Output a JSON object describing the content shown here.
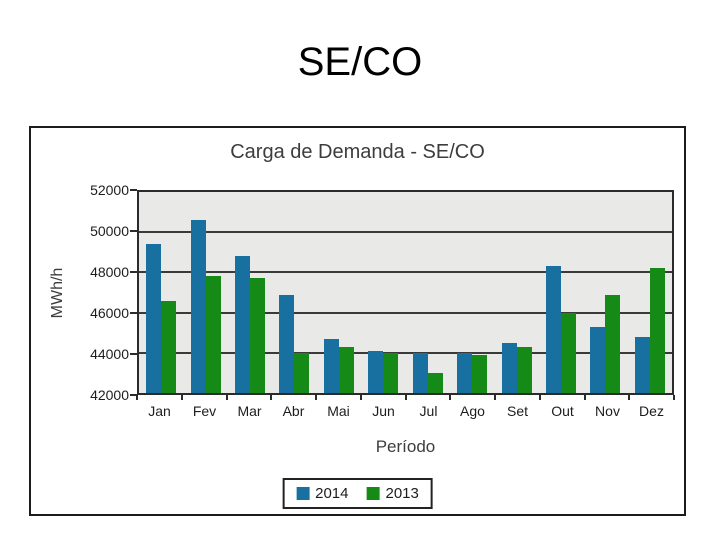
{
  "slide": {
    "title": "SE/CO"
  },
  "chart_data": {
    "type": "bar",
    "title": "Carga de Demanda - SE/CO",
    "xlabel": "Período",
    "ylabel": "MWh/h",
    "categories": [
      "Jan",
      "Fev",
      "Mar",
      "Abr",
      "Mai",
      "Jun",
      "Jul",
      "Ago",
      "Set",
      "Out",
      "Nov",
      "Dez"
    ],
    "series": [
      {
        "name": "2014",
        "color": "#17709F",
        "values": [
          49400,
          50600,
          48800,
          46900,
          44700,
          44100,
          44000,
          44000,
          44500,
          48300,
          45300,
          44800
        ]
      },
      {
        "name": "2013",
        "color": "#168A16",
        "values": [
          46600,
          47800,
          47700,
          44000,
          44300,
          44000,
          43000,
          43900,
          44300,
          46000,
          46900,
          48200
        ]
      }
    ],
    "ylim": [
      42000,
      52000
    ],
    "yticks": [
      52000,
      50000,
      48000,
      46000,
      44000,
      42000
    ],
    "grid": true,
    "legend_position": "bottom",
    "plot_background": "#E9E9E7",
    "gridline_color": "#3A3A3A"
  }
}
